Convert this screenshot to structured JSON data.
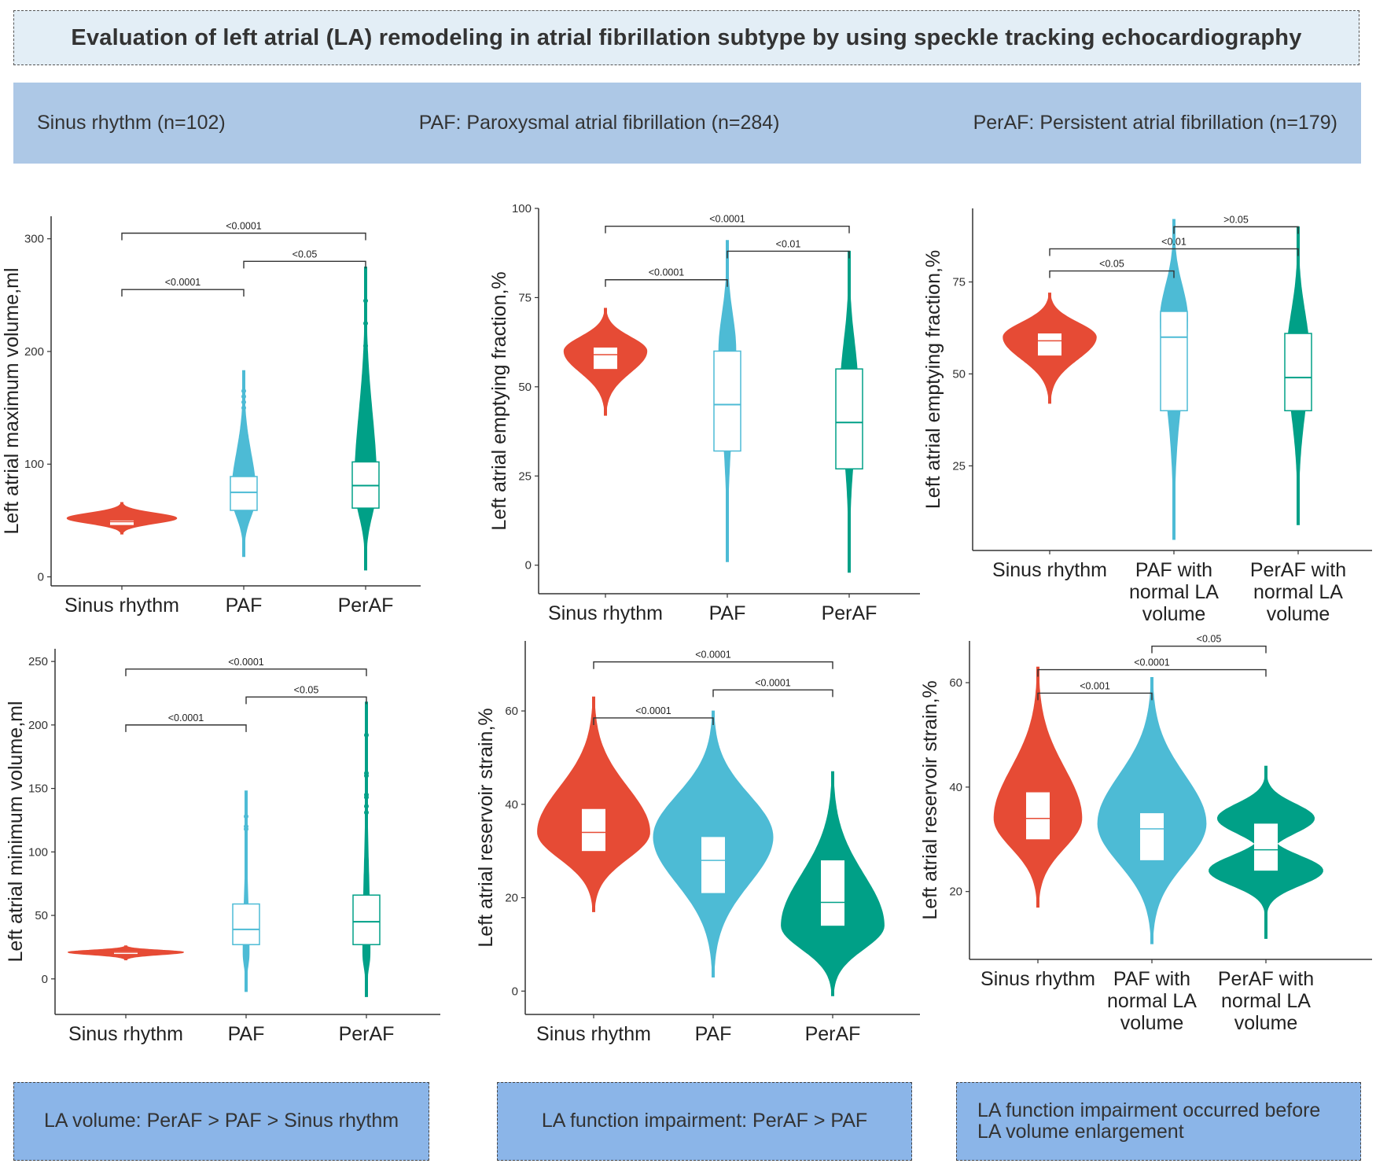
{
  "title": "Evaluation of left atrial (LA) remodeling in atrial fibrillation subtype by using speckle tracking echocardiography",
  "groups": [
    "Sinus rhythm (n=102)",
    "PAF: Paroxysmal atrial fibrillation (n=284)",
    "PerAF: Persistent atrial fibrillation (n=179)"
  ],
  "summaries": [
    {
      "lines": [
        "LA volume: PerAF > PAF >  Sinus rhythm"
      ]
    },
    {
      "lines": [
        "LA function impairment: PerAF > PAF"
      ]
    },
    {
      "lines": [
        "LA function impairment occurred before",
        "LA volume enlargement"
      ]
    }
  ],
  "colors": {
    "sinus": "#e64b35",
    "paf": "#4dbbd5",
    "peraf": "#00a087",
    "axis": "#333333"
  },
  "chart_data": [
    {
      "type": "violin",
      "ylabel": "Left atrial maximum volume,ml",
      "ylim": [
        -8,
        320
      ],
      "yticks": [
        0,
        100,
        200,
        300
      ],
      "categories": [
        "Sinus rhythm",
        "PAF",
        "PerAF"
      ],
      "series": [
        {
          "name": "Sinus rhythm",
          "color": "sinus",
          "min": 38,
          "max": 66,
          "peak": 52,
          "width": 0.9,
          "q1": 46,
          "median": 49,
          "q3": 50,
          "box_style": "white"
        },
        {
          "name": "PAF",
          "color": "paf",
          "min": 18,
          "max": 183,
          "peak": 72,
          "width": 0.2,
          "q1": 59,
          "median": 75,
          "q3": 89,
          "box_style": "outline",
          "outliers": [
            150,
            155,
            160,
            165
          ]
        },
        {
          "name": "PerAF",
          "color": "peraf",
          "min": 6,
          "max": 275,
          "peak": 80,
          "width": 0.18,
          "q1": 61,
          "median": 81,
          "q3": 102,
          "box_style": "outline",
          "outliers": [
            180,
            185,
            190,
            195,
            205,
            225,
            245
          ]
        }
      ],
      "comparisons": [
        {
          "from": 0,
          "to": 1,
          "y": 255,
          "label": "<0.0001"
        },
        {
          "from": 1,
          "to": 2,
          "y": 280,
          "label": "<0.05"
        },
        {
          "from": 0,
          "to": 2,
          "y": 305,
          "label": "<0.0001"
        }
      ]
    },
    {
      "type": "violin",
      "ylabel": "Left atrial emptying fraction,%",
      "ylim": [
        -8,
        100
      ],
      "yticks": [
        0,
        25,
        50,
        75,
        100
      ],
      "categories": [
        "Sinus rhythm",
        "PAF",
        "PerAF"
      ],
      "series": [
        {
          "name": "Sinus rhythm",
          "color": "sinus",
          "min": 42,
          "max": 72,
          "peak": 60,
          "width": 0.68,
          "q1": 55,
          "median": 59,
          "q3": 61,
          "box_style": "white"
        },
        {
          "name": "PAF",
          "color": "paf",
          "min": 1,
          "max": 91,
          "peak": 60,
          "width": 0.14,
          "q1": 32,
          "median": 45,
          "q3": 60,
          "box_style": "outline"
        },
        {
          "name": "PerAF",
          "color": "peraf",
          "min": -2,
          "max": 88,
          "peak": 50,
          "width": 0.14,
          "q1": 27,
          "median": 40,
          "q3": 55,
          "box_style": "outline"
        }
      ],
      "comparisons": [
        {
          "from": 0,
          "to": 1,
          "y": 80,
          "label": "<0.0001"
        },
        {
          "from": 1,
          "to": 2,
          "y": 88,
          "label": "<0.01"
        },
        {
          "from": 0,
          "to": 2,
          "y": 95,
          "label": "<0.0001"
        }
      ]
    },
    {
      "type": "violin",
      "ylabel": "Left atrial emptying fraction,%",
      "ylim": [
        2,
        95
      ],
      "yticks": [
        25,
        50,
        75
      ],
      "categories": [
        "Sinus rhythm",
        "PAF with normal LA volume",
        "PerAF with normal LA volume"
      ],
      "series": [
        {
          "name": "Sinus rhythm",
          "color": "sinus",
          "min": 42,
          "max": 72,
          "peak": 60,
          "width": 0.75,
          "q1": 55,
          "median": 59,
          "q3": 61,
          "box_style": "white"
        },
        {
          "name": "PAF with normal LA volume",
          "color": "paf",
          "min": 5,
          "max": 92,
          "peak": 65,
          "width": 0.22,
          "q1": 40,
          "median": 60,
          "q3": 67,
          "box_style": "outline"
        },
        {
          "name": "PerAF with normal LA volume",
          "color": "peraf",
          "min": 9,
          "max": 90,
          "peak": 55,
          "width": 0.18,
          "q1": 40,
          "median": 49,
          "q3": 61,
          "box_style": "outline"
        }
      ],
      "comparisons": [
        {
          "from": 0,
          "to": 1,
          "y": 78,
          "label": "<0.05"
        },
        {
          "from": 0,
          "to": 2,
          "y": 84,
          "label": "<0.01"
        },
        {
          "from": 1,
          "to": 2,
          "y": 90,
          "label": ">0.05"
        }
      ]
    },
    {
      "type": "violin",
      "ylabel": "Left atrial minimum volume,ml",
      "ylim": [
        -28,
        260
      ],
      "yticks": [
        0,
        50,
        100,
        150,
        200,
        250
      ],
      "categories": [
        "Sinus rhythm",
        "PAF",
        "PerAF"
      ],
      "series": [
        {
          "name": "Sinus rhythm",
          "color": "sinus",
          "min": 15,
          "max": 26,
          "peak": 21,
          "width": 0.96,
          "q1": 20,
          "median": 21,
          "q3": 21.5,
          "box_style": "white"
        },
        {
          "name": "PAF",
          "color": "paf",
          "min": -10,
          "max": 148,
          "peak": 20,
          "width": 0.05,
          "q1": 27,
          "median": 39,
          "q3": 59,
          "box_style": "outline",
          "outliers": [
            118,
            120,
            128
          ]
        },
        {
          "name": "PerAF",
          "color": "peraf",
          "min": -14,
          "max": 218,
          "peak": 20,
          "width": 0.06,
          "q1": 27,
          "median": 45,
          "q3": 66,
          "box_style": "outline",
          "outliers": [
            131,
            136,
            143,
            145,
            160,
            162,
            192
          ]
        }
      ],
      "comparisons": [
        {
          "from": 0,
          "to": 1,
          "y": 200,
          "label": "<0.0001"
        },
        {
          "from": 1,
          "to": 2,
          "y": 222,
          "label": "<0.05"
        },
        {
          "from": 0,
          "to": 2,
          "y": 244,
          "label": "<0.0001"
        }
      ]
    },
    {
      "type": "violin",
      "ylabel": "Left atrial reservoir strain,%",
      "ylim": [
        -5,
        75
      ],
      "yticks": [
        0,
        20,
        40,
        60
      ],
      "categories": [
        "Sinus rhythm",
        "PAF",
        "PerAF"
      ],
      "series": [
        {
          "name": "Sinus rhythm",
          "color": "sinus",
          "min": 17,
          "max": 63,
          "peak": 34,
          "width": 0.94,
          "q1": 30,
          "median": 34,
          "q3": 39,
          "box_style": "white"
        },
        {
          "name": "PAF",
          "color": "paf",
          "min": 3,
          "max": 60,
          "peak": 33,
          "width": 1.0,
          "q1": 21,
          "median": 28,
          "q3": 33,
          "box_style": "white"
        },
        {
          "name": "PerAF",
          "color": "peraf",
          "min": -1,
          "max": 47,
          "peak": 14,
          "width": 0.86,
          "q1": 14,
          "median": 19,
          "q3": 28,
          "box_style": "white"
        }
      ],
      "comparisons": [
        {
          "from": 0,
          "to": 1,
          "y": 58.5,
          "label": "<0.0001"
        },
        {
          "from": 1,
          "to": 2,
          "y": 64.5,
          "label": "<0.0001"
        },
        {
          "from": 0,
          "to": 2,
          "y": 70.5,
          "label": "<0.0001"
        }
      ]
    },
    {
      "type": "violin",
      "ylabel": "Left atrial reservoir strain,%",
      "ylim": [
        7,
        68
      ],
      "yticks": [
        20,
        40,
        60
      ],
      "categories": [
        "Sinus rhythm",
        "PAF with normal LA volume",
        "PerAF with normal LA volume"
      ],
      "series": [
        {
          "name": "Sinus rhythm",
          "color": "sinus",
          "min": 17,
          "max": 63,
          "peak": 34,
          "width": 0.77,
          "q1": 30,
          "median": 34,
          "q3": 39,
          "box_style": "white"
        },
        {
          "name": "PAF with normal LA volume",
          "color": "paf",
          "min": 10,
          "max": 61,
          "peak": 33,
          "width": 0.95,
          "q1": 26,
          "median": 32,
          "q3": 35,
          "box_style": "white"
        },
        {
          "name": "PerAF with normal LA volume",
          "color": "peraf",
          "min": 11,
          "max": 44,
          "peak": 24,
          "width": 1.0,
          "q1": 24,
          "median": 28,
          "q3": 33,
          "box_style": "white",
          "bimodal": [
            34,
            24
          ]
        }
      ],
      "comparisons": [
        {
          "from": 0,
          "to": 1,
          "y": 58,
          "label": "<0.001"
        },
        {
          "from": 0,
          "to": 2,
          "y": 62.5,
          "label": "<0.0001"
        },
        {
          "from": 1,
          "to": 2,
          "y": 67,
          "label": "<0.05"
        }
      ]
    }
  ]
}
